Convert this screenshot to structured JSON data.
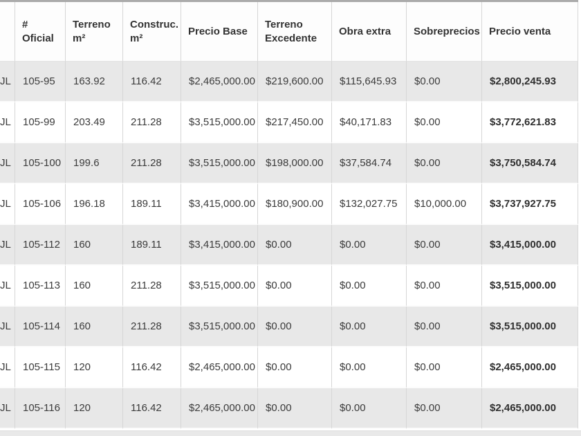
{
  "table": {
    "row_prefix": "JL",
    "columns": [
      {
        "key": "oficial",
        "label": "# Oficial"
      },
      {
        "key": "terreno",
        "label": "Terreno m²"
      },
      {
        "key": "construc",
        "label": "Construc. m²"
      },
      {
        "key": "precio_base",
        "label": "Precio Base"
      },
      {
        "key": "terreno_exc",
        "label": "Terreno Excedente"
      },
      {
        "key": "obra_extra",
        "label": "Obra extra"
      },
      {
        "key": "sobreprecios",
        "label": "Sobreprecios"
      },
      {
        "key": "precio_venta",
        "label": "Precio venta"
      }
    ],
    "rows": [
      [
        "105-95",
        "163.92",
        "116.42",
        "$2,465,000.00",
        "$219,600.00",
        "$115,645.93",
        "$0.00",
        "$2,800,245.93"
      ],
      [
        "105-99",
        "203.49",
        "211.28",
        "$3,515,000.00",
        "$217,450.00",
        "$40,171.83",
        "$0.00",
        "$3,772,621.83"
      ],
      [
        "105-100",
        "199.6",
        "211.28",
        "$3,515,000.00",
        "$198,000.00",
        "$37,584.74",
        "$0.00",
        "$3,750,584.74"
      ],
      [
        "105-106",
        "196.18",
        "189.11",
        "$3,415,000.00",
        "$180,900.00",
        "$132,027.75",
        "$10,000.00",
        "$3,737,927.75"
      ],
      [
        "105-112",
        "160",
        "189.11",
        "$3,415,000.00",
        "$0.00",
        "$0.00",
        "$0.00",
        "$3,415,000.00"
      ],
      [
        "105-113",
        "160",
        "211.28",
        "$3,515,000.00",
        "$0.00",
        "$0.00",
        "$0.00",
        "$3,515,000.00"
      ],
      [
        "105-114",
        "160",
        "211.28",
        "$3,515,000.00",
        "$0.00",
        "$0.00",
        "$0.00",
        "$3,515,000.00"
      ],
      [
        "105-115",
        "120",
        "116.42",
        "$2,465,000.00",
        "$0.00",
        "$0.00",
        "$0.00",
        "$2,465,000.00"
      ],
      [
        "105-116",
        "120",
        "116.42",
        "$2,465,000.00",
        "$0.00",
        "$0.00",
        "$0.00",
        "$2,465,000.00"
      ]
    ],
    "colors": {
      "alt_row_bg": "#e8e8e8",
      "row_bg": "#ffffff",
      "header_bg": "#fdfdfd",
      "grid_line": "#d6d6d6",
      "text": "#3b3b3b"
    }
  }
}
